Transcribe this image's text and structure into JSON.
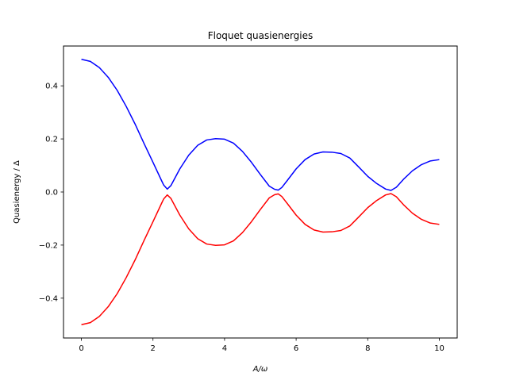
{
  "chart_data": {
    "type": "line",
    "title": "Floquet quasienergies",
    "xlabel": "A/ω",
    "ylabel": "Quasienergy / Δ",
    "xlim": [
      -0.5,
      10.5
    ],
    "ylim": [
      -0.55,
      0.55
    ],
    "xticks": [
      0,
      2,
      4,
      6,
      8,
      10
    ],
    "xtick_labels": [
      "0",
      "2",
      "4",
      "6",
      "8",
      "10"
    ],
    "yticks": [
      -0.4,
      -0.2,
      0.0,
      0.2,
      0.4
    ],
    "ytick_labels": [
      "−0.4",
      "−0.2",
      "0.0",
      "0.2",
      "0.4"
    ],
    "grid": false,
    "legend": "none",
    "x": [
      0,
      0.25,
      0.5,
      0.75,
      1,
      1.25,
      1.5,
      1.75,
      2,
      2.25,
      2.3,
      2.4,
      2.5,
      2.75,
      3,
      3.25,
      3.5,
      3.75,
      4,
      4.25,
      4.5,
      4.75,
      5,
      5.25,
      5.4,
      5.5,
      5.6,
      5.75,
      6,
      6.25,
      6.5,
      6.75,
      7,
      7.25,
      7.5,
      7.75,
      8,
      8.25,
      8.5,
      8.65,
      8.8,
      9,
      9.25,
      9.5,
      9.75,
      10
    ],
    "series": [
      {
        "color": "#0000ff",
        "values": [
          0.5,
          0.492,
          0.469,
          0.432,
          0.383,
          0.323,
          0.256,
          0.183,
          0.112,
          0.04,
          0.026,
          0.011,
          0.024,
          0.087,
          0.139,
          0.176,
          0.196,
          0.201,
          0.199,
          0.184,
          0.153,
          0.112,
          0.066,
          0.022,
          0.01,
          0.007,
          0.017,
          0.043,
          0.087,
          0.122,
          0.143,
          0.151,
          0.15,
          0.145,
          0.128,
          0.094,
          0.059,
          0.032,
          0.011,
          0.006,
          0.018,
          0.048,
          0.08,
          0.103,
          0.117,
          0.122
        ]
      },
      {
        "color": "#ff0000",
        "values": [
          -0.5,
          -0.492,
          -0.469,
          -0.432,
          -0.383,
          -0.323,
          -0.256,
          -0.183,
          -0.112,
          -0.04,
          -0.026,
          -0.011,
          -0.024,
          -0.087,
          -0.139,
          -0.176,
          -0.196,
          -0.201,
          -0.199,
          -0.184,
          -0.153,
          -0.112,
          -0.066,
          -0.022,
          -0.01,
          -0.007,
          -0.017,
          -0.043,
          -0.087,
          -0.122,
          -0.143,
          -0.151,
          -0.15,
          -0.145,
          -0.128,
          -0.094,
          -0.059,
          -0.032,
          -0.011,
          -0.006,
          -0.018,
          -0.048,
          -0.08,
          -0.103,
          -0.117,
          -0.122
        ]
      }
    ]
  }
}
